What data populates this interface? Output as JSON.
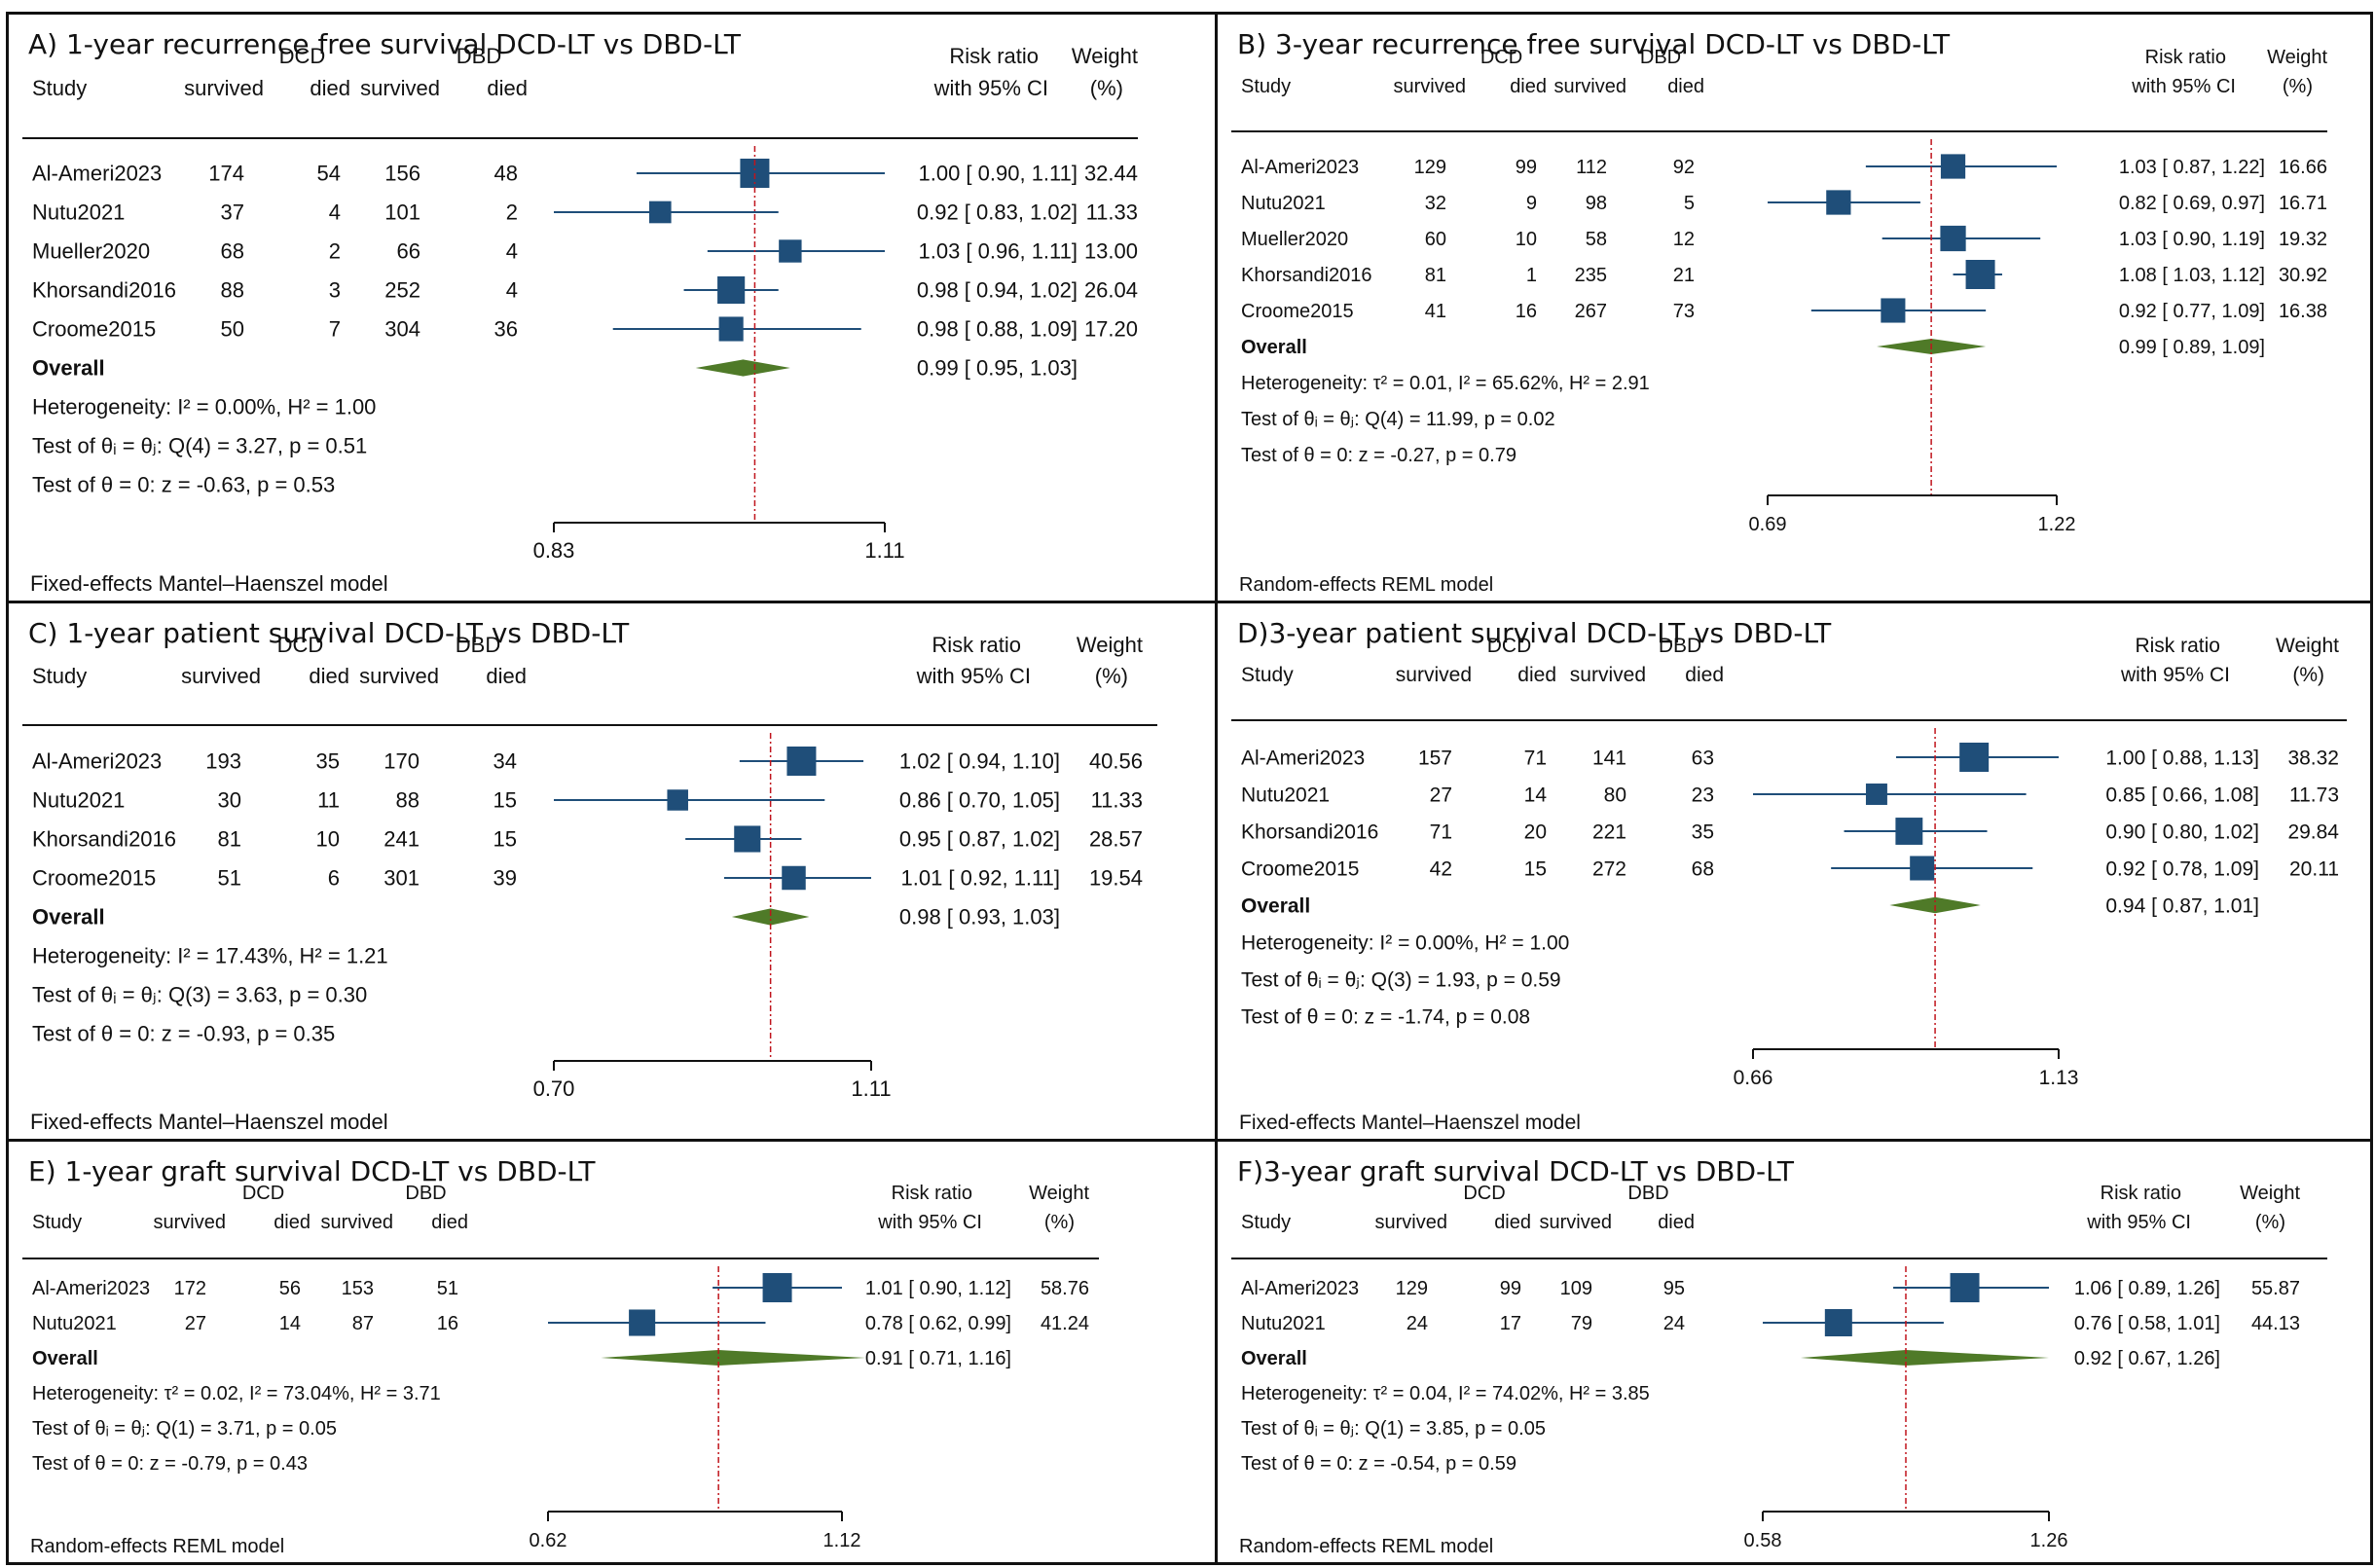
{
  "columns": {
    "study": "Study",
    "dcd": "DCD",
    "dbd": "DBD",
    "survived": "survived",
    "died": "died",
    "risk_ratio": "Risk ratio",
    "with_ci": "with 95% CI",
    "weight": "Weight",
    "weight_unit": "(%)",
    "overall": "Overall"
  },
  "colors": {
    "marker": "#1f4e79",
    "diamond": "#4f7a28",
    "ref_line": "#c0141c",
    "axis": "#111111"
  },
  "chart_data": [
    {
      "id": "A",
      "type": "forest",
      "title": "A) 1-year recurrence free survival DCD-LT vs DBD-LT",
      "xlim": [
        0.83,
        1.11
      ],
      "ticks": [
        "0.83",
        "1.11"
      ],
      "ref": 1.0,
      "studies": [
        {
          "name": "Al-Ameri2023",
          "dcd_s": "174",
          "dcd_d": "54",
          "dbd_s": "156",
          "dbd_d": "48",
          "rr": 1.0,
          "lo": 0.9,
          "hi": 1.11,
          "ci": "1.00 [ 0.90,  1.11]",
          "weight": "32.44"
        },
        {
          "name": "Nutu2021",
          "dcd_s": "37",
          "dcd_d": "4",
          "dbd_s": "101",
          "dbd_d": "2",
          "rr": 0.92,
          "lo": 0.83,
          "hi": 1.02,
          "ci": "0.92 [ 0.83,  1.02]",
          "weight": "11.33"
        },
        {
          "name": "Mueller2020",
          "dcd_s": "68",
          "dcd_d": "2",
          "dbd_s": "66",
          "dbd_d": "4",
          "rr": 1.03,
          "lo": 0.96,
          "hi": 1.11,
          "ci": "1.03 [ 0.96,  1.11]",
          "weight": "13.00"
        },
        {
          "name": "Khorsandi2016",
          "dcd_s": "88",
          "dcd_d": "3",
          "dbd_s": "252",
          "dbd_d": "4",
          "rr": 0.98,
          "lo": 0.94,
          "hi": 1.02,
          "ci": "0.98 [ 0.94,  1.02]",
          "weight": "26.04"
        },
        {
          "name": "Croome2015",
          "dcd_s": "50",
          "dcd_d": "7",
          "dbd_s": "304",
          "dbd_d": "36",
          "rr": 0.98,
          "lo": 0.88,
          "hi": 1.09,
          "ci": "0.98 [ 0.88,  1.09]",
          "weight": "17.20"
        }
      ],
      "overall": {
        "rr": 0.99,
        "lo": 0.95,
        "hi": 1.03,
        "ci": "0.99 [ 0.95,  1.03]"
      },
      "stats": [
        "Heterogeneity: I² = 0.00%, H² = 1.00",
        "Test of θᵢ = θⱼ: Q(4) = 3.27, p = 0.51",
        "Test of θ = 0: z = -0.63, p = 0.53"
      ],
      "model": "Fixed-effects Mantel–Haenszel model"
    },
    {
      "id": "B",
      "type": "forest",
      "title": "B) 3-year recurrence free survival DCD-LT vs DBD-LT",
      "xlim": [
        0.69,
        1.22
      ],
      "ticks": [
        "0.69",
        "1.22"
      ],
      "ref": 0.99,
      "studies": [
        {
          "name": "Al-Ameri2023",
          "dcd_s": "129",
          "dcd_d": "99",
          "dbd_s": "112",
          "dbd_d": "92",
          "rr": 1.03,
          "lo": 0.87,
          "hi": 1.22,
          "ci": "1.03 [ 0.87,  1.22]",
          "weight": "16.66"
        },
        {
          "name": "Nutu2021",
          "dcd_s": "32",
          "dcd_d": "9",
          "dbd_s": "98",
          "dbd_d": "5",
          "rr": 0.82,
          "lo": 0.69,
          "hi": 0.97,
          "ci": "0.82 [ 0.69,  0.97]",
          "weight": "16.71"
        },
        {
          "name": "Mueller2020",
          "dcd_s": "60",
          "dcd_d": "10",
          "dbd_s": "58",
          "dbd_d": "12",
          "rr": 1.03,
          "lo": 0.9,
          "hi": 1.19,
          "ci": "1.03 [ 0.90,  1.19]",
          "weight": "19.32"
        },
        {
          "name": "Khorsandi2016",
          "dcd_s": "81",
          "dcd_d": "1",
          "dbd_s": "235",
          "dbd_d": "21",
          "rr": 1.08,
          "lo": 1.03,
          "hi": 1.12,
          "ci": "1.08 [ 1.03,  1.12]",
          "weight": "30.92"
        },
        {
          "name": "Croome2015",
          "dcd_s": "41",
          "dcd_d": "16",
          "dbd_s": "267",
          "dbd_d": "73",
          "rr": 0.92,
          "lo": 0.77,
          "hi": 1.09,
          "ci": "0.92 [ 0.77,  1.09]",
          "weight": "16.38"
        }
      ],
      "overall": {
        "rr": 0.99,
        "lo": 0.89,
        "hi": 1.09,
        "ci": "0.99 [ 0.89,  1.09]"
      },
      "stats": [
        "Heterogeneity: τ² = 0.01, I² = 65.62%, H² = 2.91",
        "Test of θᵢ = θⱼ: Q(4) = 11.99, p = 0.02",
        "Test of θ = 0: z = -0.27, p = 0.79"
      ],
      "model": "Random-effects REML model"
    },
    {
      "id": "C",
      "type": "forest",
      "title": "C) 1-year patient survival DCD-LT vs DBD-LT",
      "xlim": [
        0.7,
        1.11
      ],
      "ticks": [
        "0.70",
        "1.11"
      ],
      "ref": 0.98,
      "studies": [
        {
          "name": "Al-Ameri2023",
          "dcd_s": "193",
          "dcd_d": "35",
          "dbd_s": "170",
          "dbd_d": "34",
          "rr": 1.02,
          "lo": 0.94,
          "hi": 1.1,
          "ci": "1.02 [ 0.94,  1.10]",
          "weight": "40.56"
        },
        {
          "name": "Nutu2021",
          "dcd_s": "30",
          "dcd_d": "11",
          "dbd_s": "88",
          "dbd_d": "15",
          "rr": 0.86,
          "lo": 0.7,
          "hi": 1.05,
          "ci": "0.86 [ 0.70,  1.05]",
          "weight": "11.33"
        },
        {
          "name": "Khorsandi2016",
          "dcd_s": "81",
          "dcd_d": "10",
          "dbd_s": "241",
          "dbd_d": "15",
          "rr": 0.95,
          "lo": 0.87,
          "hi": 1.02,
          "ci": "0.95 [ 0.87,  1.02]",
          "weight": "28.57"
        },
        {
          "name": "Croome2015",
          "dcd_s": "51",
          "dcd_d": "6",
          "dbd_s": "301",
          "dbd_d": "39",
          "rr": 1.01,
          "lo": 0.92,
          "hi": 1.11,
          "ci": "1.01 [ 0.92,  1.11]",
          "weight": "19.54"
        }
      ],
      "overall": {
        "rr": 0.98,
        "lo": 0.93,
        "hi": 1.03,
        "ci": "0.98 [ 0.93,  1.03]"
      },
      "stats": [
        "Heterogeneity: I² = 17.43%, H² = 1.21",
        "Test of θᵢ = θⱼ: Q(3) = 3.63, p = 0.30",
        "Test of θ = 0: z = -0.93, p = 0.35"
      ],
      "model": "Fixed-effects Mantel–Haenszel model"
    },
    {
      "id": "D",
      "type": "forest",
      "title": "D)3-year patient survival DCD-LT vs DBD-LT",
      "xlim": [
        0.66,
        1.13
      ],
      "ticks": [
        "0.66",
        "1.13"
      ],
      "ref": 0.94,
      "studies": [
        {
          "name": "Al-Ameri2023",
          "dcd_s": "157",
          "dcd_d": "71",
          "dbd_s": "141",
          "dbd_d": "63",
          "rr": 1.0,
          "lo": 0.88,
          "hi": 1.13,
          "ci": "1.00 [ 0.88,  1.13]",
          "weight": "38.32"
        },
        {
          "name": "Nutu2021",
          "dcd_s": "27",
          "dcd_d": "14",
          "dbd_s": "80",
          "dbd_d": "23",
          "rr": 0.85,
          "lo": 0.66,
          "hi": 1.08,
          "ci": "0.85 [ 0.66,  1.08]",
          "weight": "11.73"
        },
        {
          "name": "Khorsandi2016",
          "dcd_s": "71",
          "dcd_d": "20",
          "dbd_s": "221",
          "dbd_d": "35",
          "rr": 0.9,
          "lo": 0.8,
          "hi": 1.02,
          "ci": "0.90 [ 0.80,  1.02]",
          "weight": "29.84"
        },
        {
          "name": "Croome2015",
          "dcd_s": "42",
          "dcd_d": "15",
          "dbd_s": "272",
          "dbd_d": "68",
          "rr": 0.92,
          "lo": 0.78,
          "hi": 1.09,
          "ci": "0.92 [ 0.78,  1.09]",
          "weight": "20.11"
        }
      ],
      "overall": {
        "rr": 0.94,
        "lo": 0.87,
        "hi": 1.01,
        "ci": "0.94 [ 0.87,  1.01]"
      },
      "stats": [
        "Heterogeneity: I² = 0.00%, H² = 1.00",
        "Test of θᵢ = θⱼ: Q(3) = 1.93, p = 0.59",
        "Test of θ = 0: z = -1.74, p = 0.08"
      ],
      "model": "Fixed-effects Mantel–Haenszel model"
    },
    {
      "id": "E",
      "type": "forest",
      "title": "E) 1-year graft survival DCD-LT vs DBD-LT",
      "xlim": [
        0.62,
        1.12
      ],
      "ticks": [
        "0.62",
        "1.12"
      ],
      "ref": 0.91,
      "studies": [
        {
          "name": "Al-Ameri2023",
          "dcd_s": "172",
          "dcd_d": "56",
          "dbd_s": "153",
          "dbd_d": "51",
          "rr": 1.01,
          "lo": 0.9,
          "hi": 1.12,
          "ci": "1.01 [ 0.90,  1.12]",
          "weight": "58.76"
        },
        {
          "name": "Nutu2021",
          "dcd_s": "27",
          "dcd_d": "14",
          "dbd_s": "87",
          "dbd_d": "16",
          "rr": 0.78,
          "lo": 0.62,
          "hi": 0.99,
          "ci": "0.78 [ 0.62,  0.99]",
          "weight": "41.24"
        }
      ],
      "overall": {
        "rr": 0.91,
        "lo": 0.71,
        "hi": 1.16,
        "ci": "0.91 [ 0.71,  1.16]"
      },
      "stats": [
        "Heterogeneity: τ² = 0.02, I² = 73.04%, H² = 3.71",
        "Test of θᵢ = θⱼ: Q(1) = 3.71, p = 0.05",
        "Test of θ = 0: z = -0.79, p = 0.43"
      ],
      "model": "Random-effects REML model"
    },
    {
      "id": "F",
      "type": "forest",
      "title": "F)3-year graft survival DCD-LT vs DBD-LT",
      "xlim": [
        0.58,
        1.26
      ],
      "ticks": [
        "0.58",
        "1.26"
      ],
      "ref": 0.92,
      "studies": [
        {
          "name": "Al-Ameri2023",
          "dcd_s": "129",
          "dcd_d": "99",
          "dbd_s": "109",
          "dbd_d": "95",
          "rr": 1.06,
          "lo": 0.89,
          "hi": 1.26,
          "ci": "1.06 [ 0.89,  1.26]",
          "weight": "55.87"
        },
        {
          "name": "Nutu2021",
          "dcd_s": "24",
          "dcd_d": "17",
          "dbd_s": "79",
          "dbd_d": "24",
          "rr": 0.76,
          "lo": 0.58,
          "hi": 1.01,
          "ci": "0.76 [ 0.58,  1.01]",
          "weight": "44.13"
        }
      ],
      "overall": {
        "rr": 0.92,
        "lo": 0.67,
        "hi": 1.26,
        "ci": "0.92 [ 0.67,  1.26]"
      },
      "stats": [
        "Heterogeneity: τ² = 0.04, I² = 74.02%, H² = 3.85",
        "Test of θᵢ = θⱼ: Q(1) = 3.85, p = 0.05",
        "Test of θ = 0: z = -0.54, p = 0.59"
      ],
      "model": "Random-effects REML model"
    }
  ]
}
